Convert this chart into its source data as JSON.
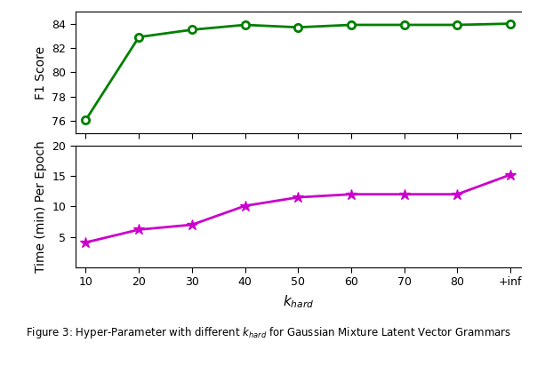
{
  "x_vals": [
    10,
    20,
    30,
    40,
    50,
    60,
    70,
    80,
    90
  ],
  "x_labels": [
    "10",
    "20",
    "30",
    "40",
    "50",
    "60",
    "70",
    "80",
    "+inf"
  ],
  "f1_scores": [
    76.1,
    82.9,
    83.5,
    83.9,
    83.7,
    83.9,
    83.9,
    83.9,
    84.0
  ],
  "time_vals": [
    4.1,
    6.2,
    7.0,
    10.1,
    11.5,
    12.0,
    12.0,
    12.0,
    15.2
  ],
  "f1_color": "#008000",
  "time_color": "#CC00CC",
  "f1_ylim": [
    75,
    85
  ],
  "f1_yticks": [
    76,
    78,
    80,
    82,
    84
  ],
  "time_ylim": [
    0,
    20
  ],
  "time_yticks": [
    5,
    10,
    15,
    20
  ],
  "ylabel_f1": "F1 Score",
  "ylabel_time": "Time (min) Per Epoch",
  "xlabel": "$k_{hard}$",
  "caption": "Figure 3: Hyper-Parameter with different $k_{hard}$ for Gaussian Mixture Latent Vector Grammars"
}
